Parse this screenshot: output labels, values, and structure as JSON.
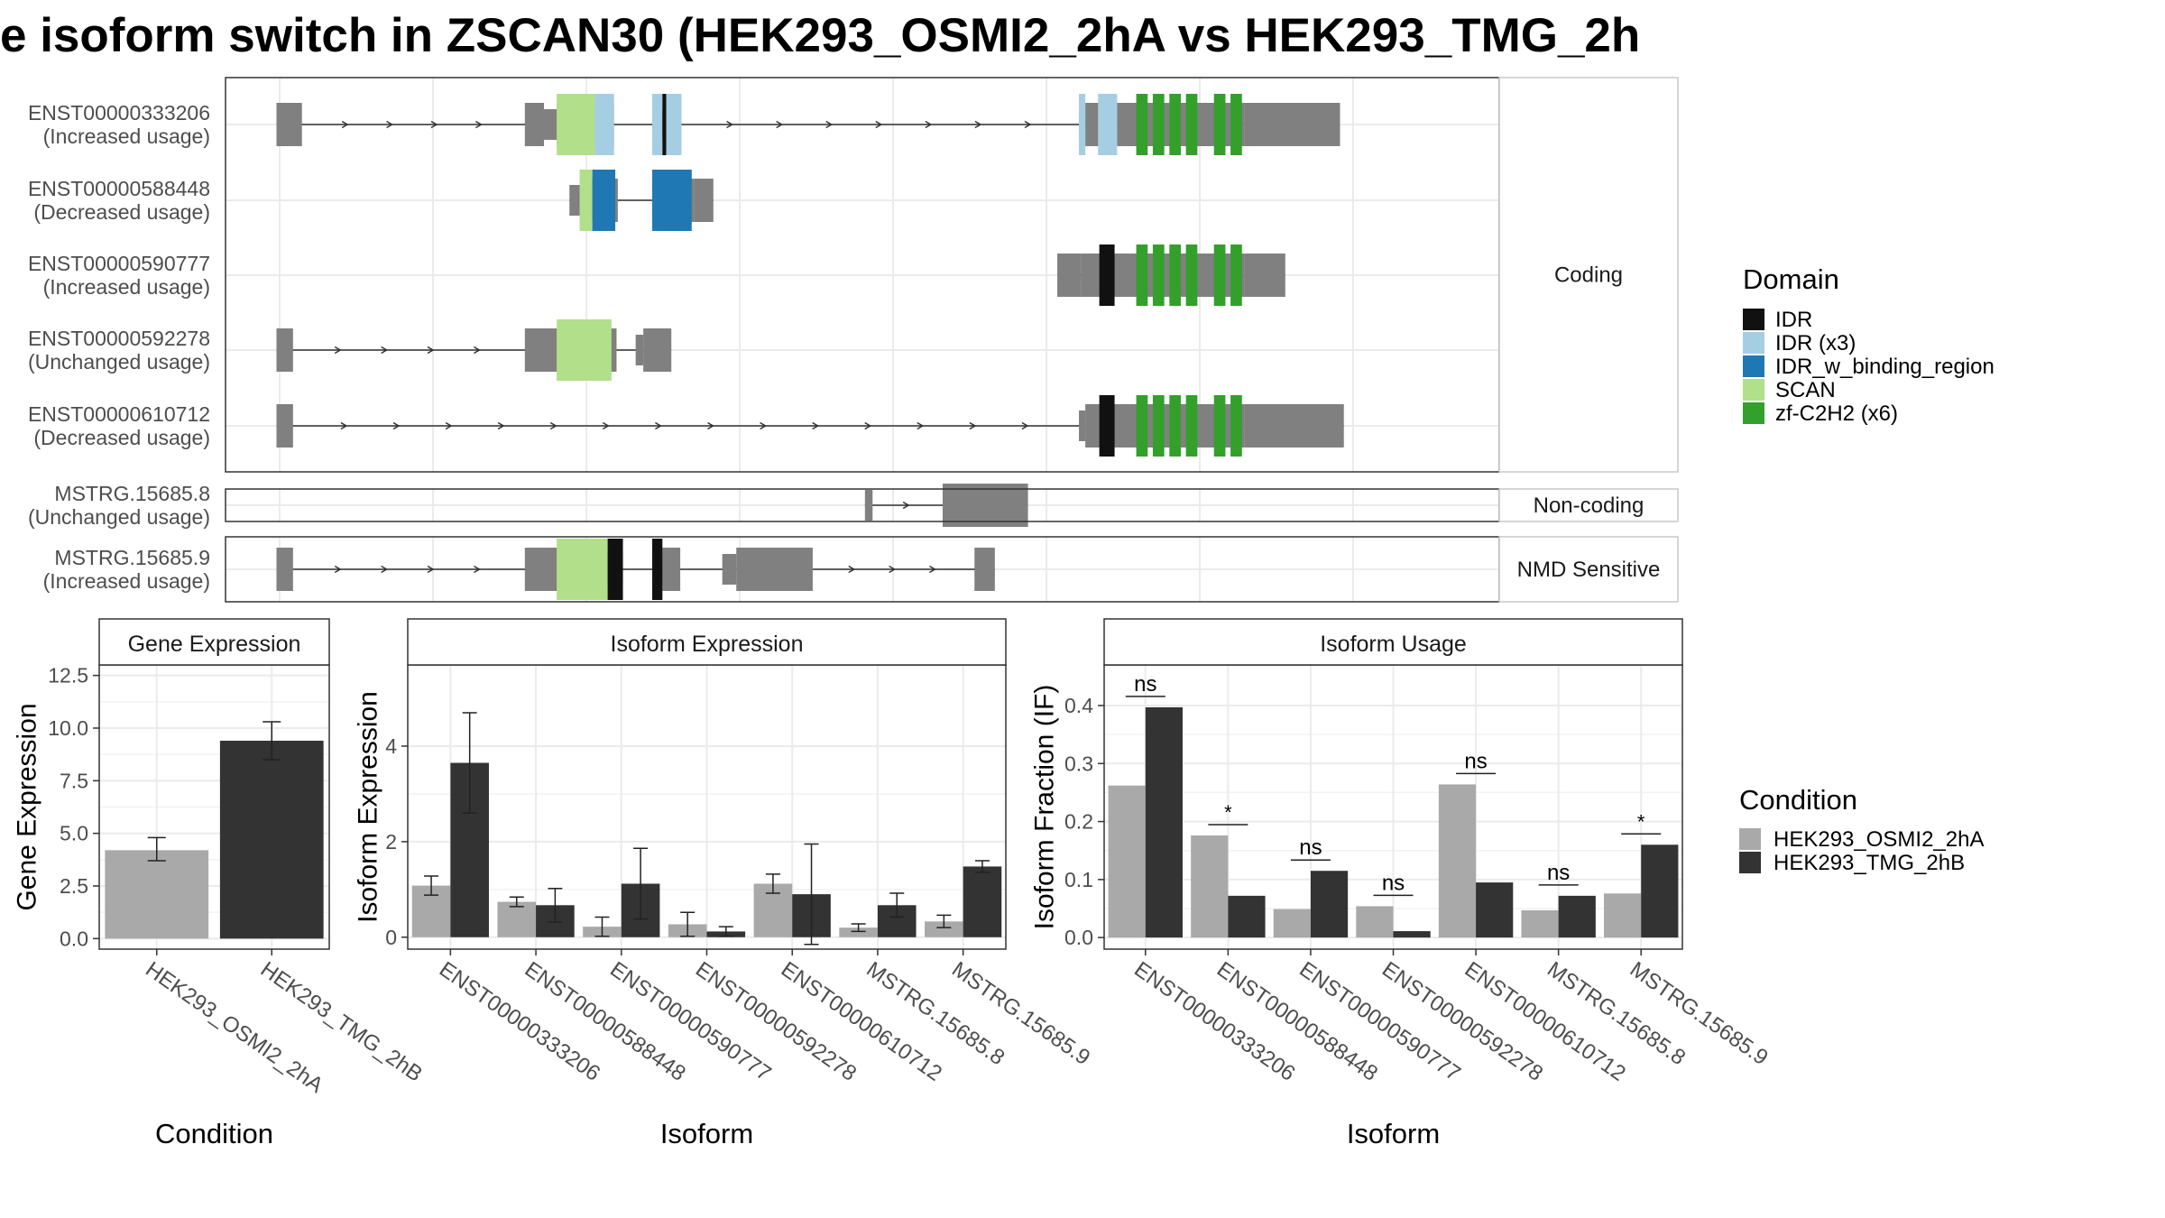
{
  "title": "e isoform switch in ZSCAN30 (HEK293_OSMI2_2hA vs HEK293_TMG_2h",
  "colors": {
    "exon": "#808080",
    "IDR": "#111111",
    "IDR (x3)": "#a6cee3",
    "IDR_w_binding_region": "#1f78b4",
    "SCAN": "#b2df8a",
    "zf-C2H2 (x6)": "#33a02c",
    "cond_a": "#a9a9a9",
    "cond_b": "#333333"
  },
  "structure": {
    "panels": [
      {
        "label": "Coding",
        "isoforms": [
          {
            "id": "ENST00000333206",
            "usage": "(Increased usage)",
            "exons": [
              [
                40,
                60
              ],
              [
                235,
                250
              ],
              [
                250,
                260
              ],
              [
                260,
                305
              ],
              [
                335,
                345
              ],
              [
                345,
                358
              ],
              [
                670,
                675
              ],
              [
                675,
                700
              ],
              [
                700,
                800
              ],
              [
                800,
                875
              ]
            ],
            "domains": [
              [
                "SCAN",
                260,
                290
              ],
              [
                "IDR (x3)",
                290,
                305
              ],
              [
                "IDR (x3)",
                335,
                343
              ],
              [
                "IDR",
                343,
                346
              ],
              [
                "IDR (x3)",
                346,
                358
              ],
              [
                "IDR (x3)",
                670,
                675
              ],
              [
                "IDR (x3)",
                685,
                700
              ],
              [
                "zf-C2H2 (x6)",
                715,
                724
              ],
              [
                "zf-C2H2 (x6)",
                728,
                737
              ],
              [
                "zf-C2H2 (x6)",
                741,
                750
              ],
              [
                "zf-C2H2 (x6)",
                754,
                763
              ],
              [
                "zf-C2H2 (x6)",
                776,
                785
              ],
              [
                "zf-C2H2 (x6)",
                789,
                798
              ]
            ]
          },
          {
            "id": "ENST00000588448",
            "usage": "(Decreased usage)",
            "exons": [
              [
                270,
                278
              ],
              [
                278,
                308
              ],
              [
                335,
                368
              ],
              [
                368,
                383
              ]
            ],
            "domains": [
              [
                "SCAN",
                278,
                288
              ],
              [
                "IDR_w_binding_region",
                288,
                306
              ],
              [
                "IDR_w_binding_region",
                335,
                366
              ]
            ]
          },
          {
            "id": "ENST00000590777",
            "usage": "(Increased usage)",
            "exons": [
              [
                653,
                672
              ],
              [
                672,
                800
              ],
              [
                800,
                832
              ]
            ],
            "domains": [
              [
                "IDR",
                686,
                698
              ],
              [
                "zf-C2H2 (x6)",
                715,
                724
              ],
              [
                "zf-C2H2 (x6)",
                728,
                737
              ],
              [
                "zf-C2H2 (x6)",
                741,
                750
              ],
              [
                "zf-C2H2 (x6)",
                754,
                763
              ],
              [
                "zf-C2H2 (x6)",
                776,
                785
              ],
              [
                "zf-C2H2 (x6)",
                789,
                798
              ]
            ]
          },
          {
            "id": "ENST00000592278",
            "usage": "(Unchanged usage)",
            "exons": [
              [
                40,
                53
              ],
              [
                235,
                260
              ],
              [
                260,
                307
              ],
              [
                322,
                328
              ],
              [
                328,
                350
              ]
            ],
            "domains": [
              [
                "SCAN",
                260,
                303
              ]
            ]
          },
          {
            "id": "ENST00000610712",
            "usage": "(Decreased usage)",
            "exons": [
              [
                40,
                53
              ],
              [
                670,
                675
              ],
              [
                675,
                800
              ],
              [
                800,
                878
              ]
            ],
            "domains": [
              [
                "IDR",
                686,
                698
              ],
              [
                "zf-C2H2 (x6)",
                715,
                724
              ],
              [
                "zf-C2H2 (x6)",
                728,
                737
              ],
              [
                "zf-C2H2 (x6)",
                741,
                750
              ],
              [
                "zf-C2H2 (x6)",
                754,
                763
              ],
              [
                "zf-C2H2 (x6)",
                776,
                785
              ],
              [
                "zf-C2H2 (x6)",
                789,
                798
              ]
            ]
          }
        ]
      },
      {
        "label": "Non-coding",
        "isoforms": [
          {
            "id": "MSTRG.15685.8",
            "usage": "(Unchanged usage)",
            "exons": [
              [
                502,
                508
              ],
              [
                563,
                630
              ]
            ],
            "domains": []
          }
        ]
      },
      {
        "label": "NMD Sensitive",
        "isoforms": [
          {
            "id": "MSTRG.15685.9",
            "usage": "(Increased usage)",
            "exons": [
              [
                40,
                53
              ],
              [
                235,
                260
              ],
              [
                260,
                300
              ],
              [
                300,
                312
              ],
              [
                335,
                343
              ],
              [
                343,
                357
              ],
              [
                390,
                401
              ],
              [
                401,
                461
              ],
              [
                588,
                604
              ]
            ],
            "domains": [
              [
                "SCAN",
                260,
                300
              ],
              [
                "IDR",
                300,
                312
              ],
              [
                "IDR",
                335,
                343
              ]
            ]
          }
        ]
      }
    ]
  },
  "legend_domain": {
    "title": "Domain",
    "items": [
      "IDR",
      "IDR (x3)",
      "IDR_w_binding_region",
      "SCAN",
      "zf-C2H2 (x6)"
    ]
  },
  "legend_condition": {
    "title": "Condition",
    "items": [
      "HEK293_OSMI2_2hA",
      "HEK293_TMG_2hB"
    ]
  },
  "chart_data": [
    {
      "type": "bar",
      "title": "Gene Expression",
      "xlabel": "Condition",
      "ylabel": "Gene Expression",
      "categories": [
        "HEK293_OSMI2_2hA",
        "HEK293_TMG_2hB"
      ],
      "values": [
        4.2,
        9.4
      ],
      "errors": [
        [
          3.7,
          4.8
        ],
        [
          8.5,
          10.3
        ]
      ],
      "yticks": [
        "0.0",
        "2.5",
        "5.0",
        "7.5",
        "10.0",
        "12.5"
      ],
      "ylim": [
        -0.5,
        13.0
      ]
    },
    {
      "type": "bar",
      "title": "Isoform Expression",
      "xlabel": "Isoform",
      "ylabel": "Isoform Expression",
      "categories": [
        "ENST00000333206",
        "ENST00000588448",
        "ENST00000590777",
        "ENST00000592278",
        "ENST00000610712",
        "MSTRG.15685.8",
        "MSTRG.15685.9"
      ],
      "series": [
        {
          "name": "HEK293_OSMI2_2hA",
          "values": [
            1.08,
            0.74,
            0.22,
            0.27,
            1.12,
            0.2,
            0.33
          ],
          "errors": [
            [
              0.88,
              1.28
            ],
            [
              0.64,
              0.84
            ],
            [
              0.02,
              0.42
            ],
            [
              0.02,
              0.52
            ],
            [
              0.92,
              1.32
            ],
            [
              0.12,
              0.28
            ],
            [
              0.2,
              0.46
            ]
          ]
        },
        {
          "name": "HEK293_TMG_2hB",
          "values": [
            3.65,
            0.67,
            1.12,
            0.12,
            0.9,
            0.67,
            1.48
          ],
          "errors": [
            [
              2.6,
              4.7
            ],
            [
              0.32,
              1.02
            ],
            [
              0.38,
              1.86
            ],
            [
              0.02,
              0.22
            ],
            [
              -0.15,
              1.95
            ],
            [
              0.42,
              0.92
            ],
            [
              1.36,
              1.6
            ]
          ]
        }
      ],
      "yticks": [
        "0",
        "2",
        "4"
      ],
      "ylim": [
        -0.25,
        5.7
      ]
    },
    {
      "type": "bar",
      "title": "Isoform Usage",
      "xlabel": "Isoform",
      "ylabel": "Isoform Fraction (IF)",
      "categories": [
        "ENST00000333206",
        "ENST00000588448",
        "ENST00000590777",
        "ENST00000592278",
        "ENST00000610712",
        "MSTRG.15685.8",
        "MSTRG.15685.9"
      ],
      "series": [
        {
          "name": "HEK293_OSMI2_2hA",
          "values": [
            0.262,
            0.176,
            0.049,
            0.054,
            0.264,
            0.047,
            0.076
          ]
        },
        {
          "name": "HEK293_TMG_2hB",
          "values": [
            0.397,
            0.072,
            0.115,
            0.011,
            0.095,
            0.072,
            0.16
          ]
        }
      ],
      "annotations": [
        "ns",
        "*",
        "ns",
        "ns",
        "ns",
        "ns",
        "*"
      ],
      "yticks": [
        "0.0",
        "0.1",
        "0.2",
        "0.3",
        "0.4"
      ],
      "ylim": [
        -0.02,
        0.47
      ]
    }
  ]
}
